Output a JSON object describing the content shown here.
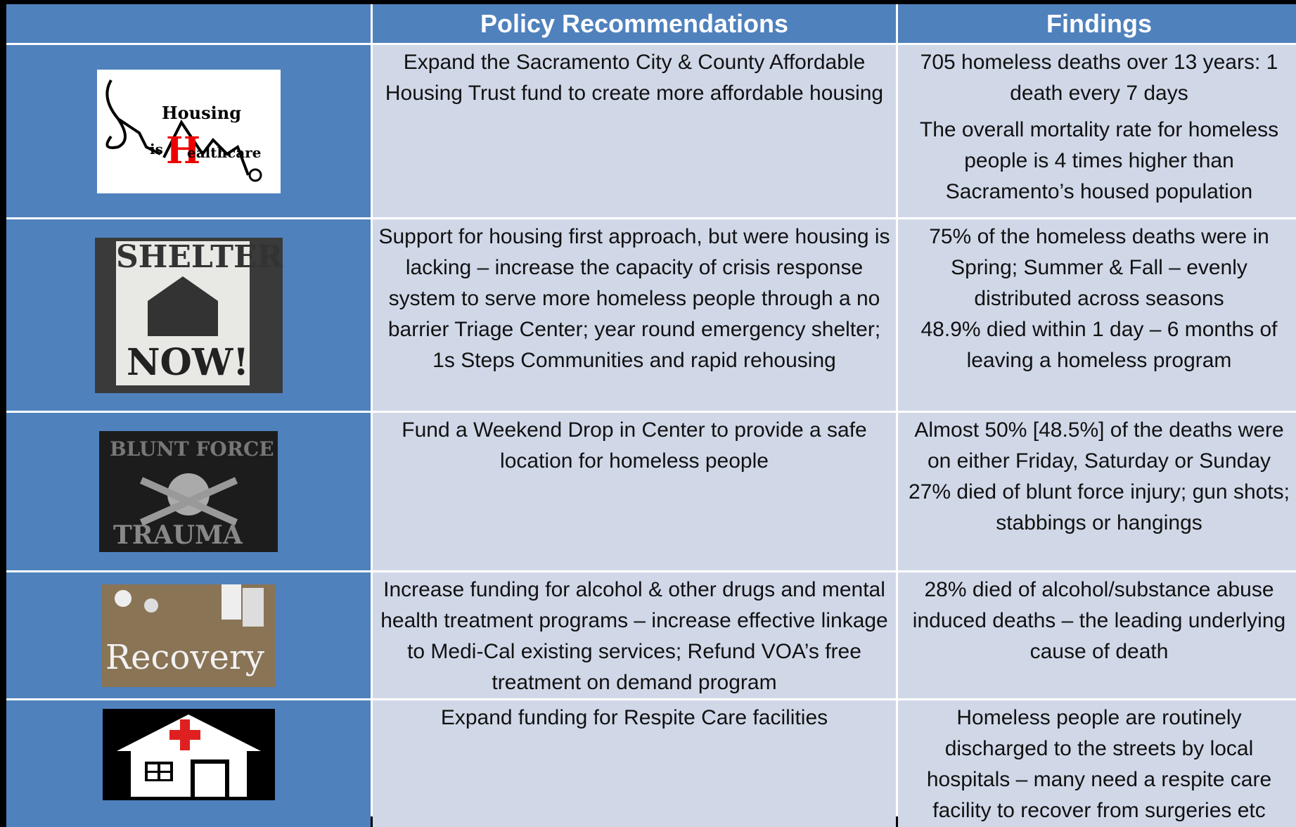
{
  "header": {
    "cells": [
      "Policy Recommendations",
      "Findings"
    ]
  },
  "images": [
    "Housing",
    "is",
    "ealthcare",
    "H",
    "SHELTER",
    "NOW!",
    "BLUNT FORCE",
    "TRAUMA",
    "Recovery"
  ],
  "rows": [
    {
      "policy": "Expand the Sacramento City & County Affordable Housing Trust fund to create more affordable housing",
      "findings": [
        "705 homeless deaths over 13 years: 1 death every 7 days",
        "The overall mortality rate for homeless people is 4 times higher than Sacramento’s housed population"
      ]
    },
    {
      "policy": "Support for housing first approach, but were housing is lacking – increase the capacity of crisis response system to serve more homeless people through a no barrier Triage Center; year round emergency shelter; 1s Steps Communities and rapid rehousing",
      "findings": [
        "75% of the homeless deaths were in Spring; Summer & Fall – evenly distributed across seasons",
        "48.9% died within 1 day – 6 months of leaving a homeless program"
      ]
    },
    {
      "policy": "Fund a Weekend Drop in Center to provide a safe location for homeless people",
      "findings": [
        "Almost 50% [48.5%] of the deaths were on either Friday, Saturday or Sunday",
        "27% died of blunt force injury; gun shots; stabbings or hangings"
      ]
    },
    {
      "policy": "Increase funding for alcohol & other drugs and mental health treatment programs – increase effective linkage to Medi-Cal existing services; Refund VOA’s free treatment on demand program",
      "findings": [
        "28% died of alcohol/substance abuse induced deaths – the leading underlying cause of death"
      ]
    },
    {
      "policy": "Expand funding for Respite Care facilities",
      "findings": [
        "Homeless people are routinely discharged to the streets by local hospitals – many need a respite care facility to recover from surgeries etc"
      ]
    }
  ]
}
